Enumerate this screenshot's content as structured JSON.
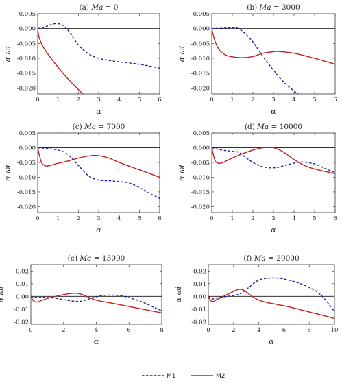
{
  "colors": {
    "m1": "#1f1f9e",
    "m2": "#c41e1e",
    "axis": "#333333",
    "zero": "#111111"
  },
  "legend": {
    "placement": "bottom-center",
    "items": [
      "M1",
      "M2"
    ]
  },
  "chart_data": [
    {
      "type": "line",
      "title_prefix": "(a) ",
      "title_ma": "Ma",
      "title_value": " = 0",
      "xlabel": "α",
      "ylabel": "α ωi",
      "xlim": [
        0,
        6
      ],
      "ylim": [
        -0.022,
        0.005
      ],
      "xticks": [
        0,
        1,
        2,
        3,
        4,
        5,
        6
      ],
      "yticks": [
        0.005,
        0.0,
        -0.005,
        -0.01,
        -0.015,
        -0.02
      ],
      "ytick_labels": [
        "0.005",
        "0.000",
        "-0.005",
        "-0.010",
        "-0.015",
        "-0.020"
      ],
      "series": [
        {
          "name": "M1",
          "style": "dashed",
          "x": [
            0,
            0.3,
            0.6,
            0.9,
            1.1,
            1.3,
            1.6,
            2.0,
            2.5,
            3.0,
            3.5,
            4.0,
            5.0,
            6.0
          ],
          "y": [
            0,
            0.0004,
            0.0012,
            0.0017,
            0.0015,
            0.0008,
            -0.0015,
            -0.0055,
            -0.0085,
            -0.01,
            -0.0107,
            -0.0112,
            -0.012,
            -0.0133
          ]
        },
        {
          "name": "M2",
          "style": "solid",
          "x": [
            0,
            0.05,
            0.15,
            0.3,
            0.6,
            1.0,
            1.5,
            2.0,
            2.3
          ],
          "y": [
            0,
            -0.0025,
            -0.0045,
            -0.0065,
            -0.0095,
            -0.013,
            -0.017,
            -0.0205,
            -0.0225
          ]
        }
      ]
    },
    {
      "type": "line",
      "title_prefix": "(b) ",
      "title_ma": "Ma",
      "title_value": " = 3000",
      "xlabel": "α",
      "ylabel": "α ωi",
      "xlim": [
        0,
        6
      ],
      "ylim": [
        -0.022,
        0.005
      ],
      "xticks": [
        0,
        1,
        2,
        3,
        4,
        5,
        6
      ],
      "yticks": [
        0.005,
        0.0,
        -0.005,
        -0.01,
        -0.015,
        -0.02
      ],
      "ytick_labels": [
        "0.005",
        "0.000",
        "-0.005",
        "-0.010",
        "-0.015",
        "-0.020"
      ],
      "series": [
        {
          "name": "M1",
          "style": "dashed",
          "x": [
            0,
            0.5,
            1.0,
            1.3,
            1.6,
            2.0,
            2.5,
            3.0,
            3.5,
            4.0,
            4.3
          ],
          "y": [
            0,
            0.0001,
            0.0003,
            0.0,
            -0.0015,
            -0.0045,
            -0.0095,
            -0.014,
            -0.018,
            -0.021,
            -0.0225
          ]
        },
        {
          "name": "M2",
          "style": "solid",
          "x": [
            0,
            0.1,
            0.2,
            0.4,
            0.7,
            1.0,
            1.5,
            2.0,
            2.5,
            3.0,
            3.2,
            4.0,
            5.0,
            6.0
          ],
          "y": [
            0,
            -0.003,
            -0.005,
            -0.0075,
            -0.009,
            -0.0095,
            -0.0098,
            -0.0094,
            -0.0083,
            -0.0078,
            -0.0077,
            -0.0083,
            -0.01,
            -0.012
          ]
        }
      ]
    },
    {
      "type": "line",
      "title_prefix": "(c) ",
      "title_ma": "Ma",
      "title_value": " = 7000",
      "xlabel": "α",
      "ylabel": "α ωi",
      "xlim": [
        0,
        6
      ],
      "ylim": [
        -0.022,
        0.005
      ],
      "xticks": [
        0,
        1,
        2,
        3,
        4,
        5,
        6
      ],
      "yticks": [
        0.005,
        0.0,
        -0.005,
        -0.01,
        -0.015,
        -0.02
      ],
      "ytick_labels": [
        "0.005",
        "0.000",
        "-0.005",
        "-0.010",
        "-0.015",
        "-0.020"
      ],
      "series": [
        {
          "name": "M1",
          "style": "dashed",
          "x": [
            0,
            0.5,
            1.0,
            1.3,
            1.6,
            2.0,
            2.5,
            3.0,
            3.5,
            4.0,
            4.5,
            5.0,
            5.5,
            6.0
          ],
          "y": [
            0,
            -0.0003,
            -0.0008,
            -0.0015,
            -0.003,
            -0.006,
            -0.0095,
            -0.011,
            -0.0112,
            -0.0115,
            -0.012,
            -0.0135,
            -0.0155,
            -0.0172
          ]
        },
        {
          "name": "M2",
          "style": "solid",
          "x": [
            0,
            0.1,
            0.2,
            0.4,
            0.6,
            1.0,
            1.5,
            2.0,
            2.5,
            2.9,
            3.5,
            4.0,
            5.0,
            6.0
          ],
          "y": [
            0,
            -0.003,
            -0.0052,
            -0.0062,
            -0.006,
            -0.0053,
            -0.0045,
            -0.0035,
            -0.0028,
            -0.0026,
            -0.0035,
            -0.005,
            -0.0075,
            -0.01
          ]
        }
      ]
    },
    {
      "type": "line",
      "title_prefix": "(d) ",
      "title_ma": "Ma",
      "title_value": " = 10000",
      "xlabel": "α",
      "ylabel": "α ωi",
      "xlim": [
        0,
        6
      ],
      "ylim": [
        -0.022,
        0.005
      ],
      "xticks": [
        0,
        1,
        2,
        3,
        4,
        5,
        6
      ],
      "yticks": [
        0.005,
        0.0,
        -0.005,
        -0.01,
        -0.015,
        -0.02
      ],
      "ytick_labels": [
        "0.005",
        "0.000",
        "-0.005",
        "-0.010",
        "-0.015",
        "-0.020"
      ],
      "series": [
        {
          "name": "M1",
          "style": "dashed",
          "x": [
            0,
            0.3,
            0.7,
            1.0,
            1.3,
            1.6,
            2.0,
            2.5,
            3.0,
            3.3,
            3.7,
            4.2,
            4.5,
            5.0,
            5.5,
            6.0
          ],
          "y": [
            0,
            -0.0005,
            -0.001,
            -0.0012,
            -0.0015,
            -0.003,
            -0.005,
            -0.0065,
            -0.0068,
            -0.0065,
            -0.0057,
            -0.005,
            -0.0049,
            -0.0055,
            -0.007,
            -0.0085
          ]
        },
        {
          "name": "M2",
          "style": "solid",
          "x": [
            0,
            0.1,
            0.2,
            0.4,
            0.7,
            1.0,
            1.5,
            2.0,
            2.4,
            2.8,
            3.1,
            3.5,
            4.0,
            4.5,
            5.0,
            6.0
          ],
          "y": [
            0,
            -0.003,
            -0.0048,
            -0.0053,
            -0.0045,
            -0.0035,
            -0.002,
            -0.0008,
            -0.0001,
            0.0002,
            -0.0002,
            -0.0015,
            -0.004,
            -0.006,
            -0.0072,
            -0.0088
          ]
        }
      ]
    },
    {
      "type": "line",
      "title_prefix": "(e) ",
      "title_ma": "Ma",
      "title_value": " = 13000",
      "xlabel": "α",
      "ylabel": "α ωi",
      "xlim": [
        0,
        8
      ],
      "ylim": [
        -0.022,
        0.025
      ],
      "xticks": [
        0,
        2,
        4,
        6,
        8
      ],
      "yticks": [
        0.02,
        0.01,
        0.0,
        -0.01,
        -0.02
      ],
      "ytick_labels": [
        "0.02",
        "0.01",
        "0.00",
        "-0.01",
        "-0.02"
      ],
      "series": [
        {
          "name": "M1",
          "style": "dashed",
          "x": [
            0,
            0.3,
            0.8,
            1.5,
            2.2,
            2.8,
            3.2,
            3.8,
            4.3,
            4.8,
            5.5,
            6.0,
            6.5,
            7.0,
            7.5,
            8.0
          ],
          "y": [
            0,
            -0.0008,
            -0.0008,
            -0.0015,
            -0.003,
            -0.004,
            -0.0035,
            -0.001,
            0.0005,
            0.001,
            0.0005,
            -0.001,
            -0.003,
            -0.0055,
            -0.0085,
            -0.0115
          ]
        },
        {
          "name": "M2",
          "style": "solid",
          "x": [
            0,
            0.1,
            0.2,
            0.4,
            0.7,
            1.2,
            1.8,
            2.3,
            2.7,
            3.0,
            3.4,
            4.0,
            5.0,
            6.0,
            7.0,
            8.0
          ],
          "y": [
            0,
            -0.0025,
            -0.004,
            -0.0045,
            -0.003,
            -0.001,
            0.0008,
            0.002,
            0.0025,
            0.002,
            0.0,
            -0.003,
            -0.0055,
            -0.008,
            -0.0105,
            -0.013
          ]
        }
      ]
    },
    {
      "type": "line",
      "title_prefix": "(f) ",
      "title_ma": "Ma",
      "title_value": " = 20000",
      "xlabel": "α",
      "ylabel": "α ωi",
      "xlim": [
        0,
        10
      ],
      "ylim": [
        -0.022,
        0.025
      ],
      "xticks": [
        0,
        2,
        4,
        6,
        8,
        10
      ],
      "yticks": [
        0.02,
        0.01,
        0.0,
        -0.01,
        -0.02
      ],
      "ytick_labels": [
        "0.02",
        "0.01",
        "0.00",
        "-0.01",
        "-0.02"
      ],
      "series": [
        {
          "name": "M1",
          "style": "dashed",
          "x": [
            0,
            0.3,
            0.8,
            1.5,
            2.2,
            2.7,
            3.2,
            3.7,
            4.2,
            5.0,
            5.8,
            6.5,
            7.3,
            8.0,
            8.7,
            9.3,
            10.0
          ],
          "y": [
            0,
            -0.002,
            -0.001,
            0.0,
            0.001,
            0.003,
            0.007,
            0.011,
            0.0135,
            0.0145,
            0.014,
            0.0125,
            0.01,
            0.007,
            0.003,
            -0.003,
            -0.012
          ]
        },
        {
          "name": "M2",
          "style": "solid",
          "x": [
            0,
            0.1,
            0.2,
            0.4,
            0.7,
            1.2,
            1.8,
            2.4,
            2.8,
            3.2,
            3.8,
            4.5,
            5.5,
            6.5,
            7.5,
            8.5,
            9.5,
            10.0
          ],
          "y": [
            0,
            -0.002,
            -0.0035,
            -0.004,
            -0.0025,
            0.0,
            0.003,
            0.0055,
            0.005,
            0.002,
            -0.002,
            -0.0045,
            -0.0065,
            -0.0085,
            -0.011,
            -0.0135,
            -0.016,
            -0.0175
          ]
        }
      ]
    }
  ]
}
